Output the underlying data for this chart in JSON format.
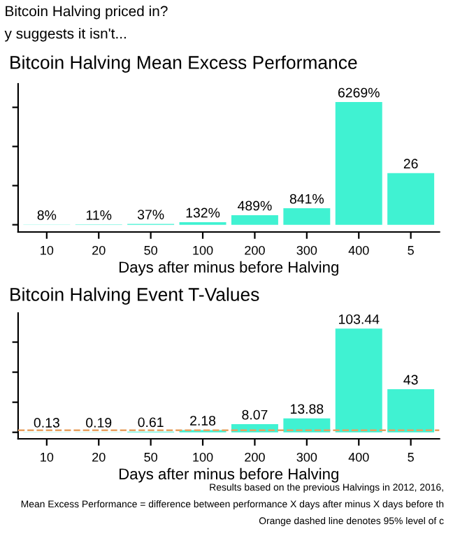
{
  "chart_data": [
    {
      "type": "bar",
      "title": "Bitcoin Halving Mean Excess Performance",
      "xlabel": "Days after minus before Halving",
      "categories": [
        "10",
        "20",
        "50",
        "100",
        "200",
        "300",
        "400",
        "5"
      ],
      "values": [
        8,
        11,
        37,
        132,
        489,
        841,
        6269,
        2640
      ],
      "value_labels": [
        "8%",
        "11%",
        "37%",
        "132%",
        "489%",
        "841%",
        "6269%",
        null
      ],
      "color": "#40f2d2",
      "ylim": [
        -370,
        7200
      ],
      "yticks": [
        {
          "value": 0,
          "label": null
        },
        {
          "value": 2000,
          "label": null
        },
        {
          "value": 4000,
          "label": null
        },
        {
          "value": 6000,
          "label": null
        }
      ],
      "tick_labels": "x",
      "grid": false,
      "annotations": [
        "Bitcoin Halving priced in?",
        "y suggests it isn't...",
        {
          "text": "26",
          "x": "5",
          "y": 2640
        }
      ]
    },
    {
      "type": "bar",
      "title": "Bitcoin Halving Event T-Values",
      "xlabel": "Days after minus before Halving",
      "categories": [
        "10",
        "20",
        "50",
        "100",
        "200",
        "300",
        "400",
        "5"
      ],
      "values": [
        0.13,
        0.19,
        0.61,
        2.18,
        8.07,
        13.88,
        103.44,
        43
      ],
      "value_labels": [
        "0.13",
        "0.19",
        "0.61",
        "2.18",
        "8.07",
        "13.88",
        "103.44",
        "43"
      ],
      "color": "#40f2d2",
      "ylim": [
        -6.5,
        119
      ],
      "yticks": [
        {
          "value": 0,
          "label": null
        },
        {
          "value": 30,
          "label": null
        },
        {
          "value": 60,
          "label": null
        },
        {
          "value": 90,
          "label": null
        }
      ],
      "tick_labels": "x",
      "grid": false,
      "ref_lines": [
        {
          "axis": "y",
          "value": 1.96,
          "color": "#e8a060",
          "line_style": "dashed"
        }
      ],
      "annotations": [
        "Results based on the previous Halvings in 2012, 2016,",
        "Mean Excess Performance = difference between performance X days after minus X days before th",
        "Orange dashed line denotes 95% level of c"
      ]
    }
  ]
}
